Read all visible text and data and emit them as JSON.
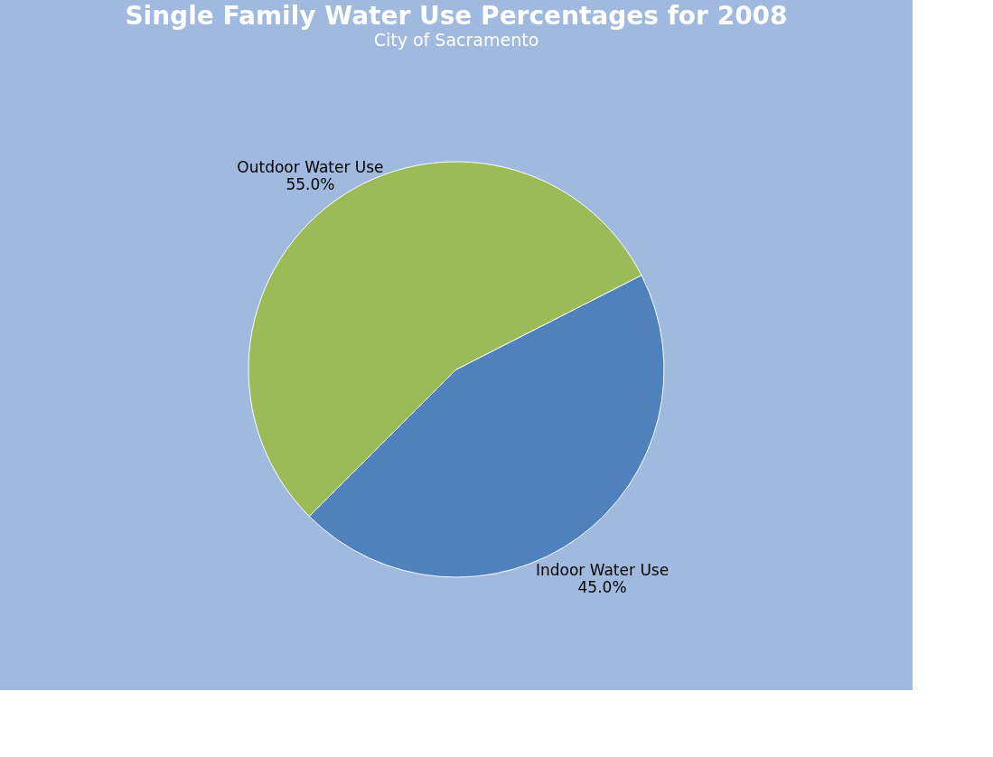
{
  "chart_data": {
    "type": "pie",
    "title": "Single Family Water Use Percentages for 2008",
    "subtitle": "City of Sacramento",
    "categories": [
      "Indoor Water Use",
      "Outdoor Water Use"
    ],
    "values": [
      45,
      55
    ],
    "colors": [
      "#4f81bd",
      "#9bbb59"
    ],
    "value_labels": [
      "45.0%",
      "55.0%"
    ],
    "legend": false
  }
}
